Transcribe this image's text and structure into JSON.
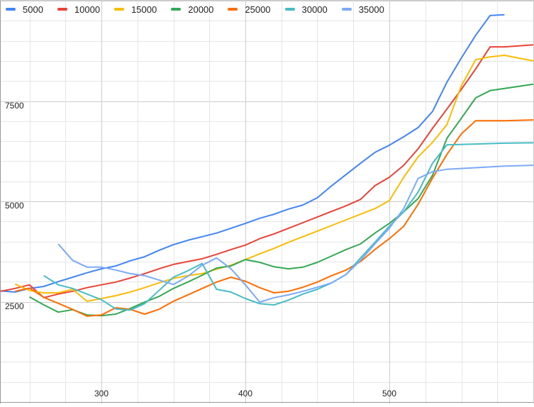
{
  "chart_data": {
    "type": "line",
    "title": "",
    "xlabel": "",
    "ylabel": "",
    "xlim": [
      230,
      600
    ],
    "ylim": [
      0,
      10000
    ],
    "grid": true,
    "legend_position": "top-left",
    "x_ticks": [
      300,
      400,
      500
    ],
    "y_ticks": [
      2500,
      5000,
      7500
    ],
    "x": [
      230,
      240,
      250,
      260,
      270,
      280,
      290,
      300,
      310,
      320,
      330,
      340,
      350,
      360,
      370,
      380,
      390,
      400,
      410,
      420,
      430,
      440,
      450,
      460,
      470,
      480,
      490,
      500,
      510,
      520,
      530,
      540,
      550,
      560,
      570,
      580,
      590,
      600
    ],
    "series": [
      {
        "name": "5000",
        "color": "#4285F4",
        "points": [
          [
            230,
            2770
          ],
          [
            240,
            2740
          ],
          [
            250,
            2830
          ],
          [
            260,
            2880
          ],
          [
            270,
            3000
          ],
          [
            280,
            3110
          ],
          [
            290,
            3220
          ],
          [
            300,
            3320
          ],
          [
            310,
            3390
          ],
          [
            320,
            3520
          ],
          [
            330,
            3620
          ],
          [
            340,
            3780
          ],
          [
            350,
            3920
          ],
          [
            360,
            4030
          ],
          [
            370,
            4120
          ],
          [
            380,
            4210
          ],
          [
            390,
            4330
          ],
          [
            400,
            4450
          ],
          [
            410,
            4580
          ],
          [
            420,
            4680
          ],
          [
            430,
            4810
          ],
          [
            440,
            4910
          ],
          [
            450,
            5090
          ],
          [
            460,
            5390
          ],
          [
            470,
            5670
          ],
          [
            480,
            5950
          ],
          [
            490,
            6220
          ],
          [
            500,
            6400
          ],
          [
            510,
            6610
          ],
          [
            520,
            6840
          ],
          [
            530,
            7240
          ],
          [
            540,
            7970
          ],
          [
            550,
            8570
          ],
          [
            560,
            9140
          ],
          [
            570,
            9630
          ],
          [
            580,
            9650
          ]
        ]
      },
      {
        "name": "10000",
        "color": "#EA4335",
        "points": [
          [
            230,
            2760
          ],
          [
            240,
            2830
          ],
          [
            250,
            2920
          ],
          [
            260,
            2600
          ],
          [
            270,
            2690
          ],
          [
            280,
            2760
          ],
          [
            290,
            2850
          ],
          [
            300,
            2920
          ],
          [
            310,
            2990
          ],
          [
            320,
            3090
          ],
          [
            330,
            3200
          ],
          [
            340,
            3320
          ],
          [
            350,
            3430
          ],
          [
            360,
            3500
          ],
          [
            370,
            3570
          ],
          [
            380,
            3680
          ],
          [
            390,
            3800
          ],
          [
            400,
            3910
          ],
          [
            410,
            4070
          ],
          [
            420,
            4190
          ],
          [
            430,
            4330
          ],
          [
            440,
            4470
          ],
          [
            450,
            4610
          ],
          [
            460,
            4750
          ],
          [
            470,
            4890
          ],
          [
            480,
            5050
          ],
          [
            490,
            5390
          ],
          [
            500,
            5600
          ],
          [
            510,
            5900
          ],
          [
            520,
            6310
          ],
          [
            530,
            6820
          ],
          [
            540,
            7300
          ],
          [
            550,
            7790
          ],
          [
            560,
            8300
          ],
          [
            570,
            8850
          ],
          [
            580,
            8850
          ],
          [
            600,
            8900
          ]
        ]
      },
      {
        "name": "15000",
        "color": "#FBBC04",
        "points": [
          [
            240,
            2940
          ],
          [
            250,
            2780
          ],
          [
            260,
            2720
          ],
          [
            270,
            2720
          ],
          [
            280,
            2810
          ],
          [
            290,
            2510
          ],
          [
            300,
            2580
          ],
          [
            310,
            2650
          ],
          [
            320,
            2740
          ],
          [
            330,
            2850
          ],
          [
            340,
            2970
          ],
          [
            350,
            3080
          ],
          [
            360,
            3150
          ],
          [
            370,
            3200
          ],
          [
            380,
            3310
          ],
          [
            390,
            3410
          ],
          [
            400,
            3550
          ],
          [
            410,
            3690
          ],
          [
            420,
            3830
          ],
          [
            430,
            3980
          ],
          [
            440,
            4120
          ],
          [
            450,
            4260
          ],
          [
            460,
            4400
          ],
          [
            470,
            4540
          ],
          [
            480,
            4680
          ],
          [
            490,
            4820
          ],
          [
            500,
            5020
          ],
          [
            510,
            5600
          ],
          [
            520,
            6110
          ],
          [
            530,
            6470
          ],
          [
            540,
            6910
          ],
          [
            550,
            7880
          ],
          [
            560,
            8530
          ],
          [
            570,
            8600
          ],
          [
            580,
            8640
          ],
          [
            600,
            8500
          ]
        ]
      },
      {
        "name": "20000",
        "color": "#34A853",
        "points": [
          [
            250,
            2620
          ],
          [
            260,
            2420
          ],
          [
            270,
            2240
          ],
          [
            280,
            2300
          ],
          [
            290,
            2170
          ],
          [
            300,
            2150
          ],
          [
            310,
            2190
          ],
          [
            320,
            2330
          ],
          [
            330,
            2490
          ],
          [
            340,
            2630
          ],
          [
            350,
            2830
          ],
          [
            360,
            2990
          ],
          [
            370,
            3160
          ],
          [
            380,
            3340
          ],
          [
            390,
            3390
          ],
          [
            400,
            3550
          ],
          [
            410,
            3480
          ],
          [
            420,
            3370
          ],
          [
            430,
            3320
          ],
          [
            440,
            3360
          ],
          [
            450,
            3480
          ],
          [
            460,
            3640
          ],
          [
            470,
            3800
          ],
          [
            480,
            3940
          ],
          [
            490,
            4210
          ],
          [
            500,
            4450
          ],
          [
            510,
            4740
          ],
          [
            520,
            5070
          ],
          [
            530,
            5650
          ],
          [
            540,
            6570
          ],
          [
            550,
            7070
          ],
          [
            560,
            7580
          ],
          [
            570,
            7760
          ],
          [
            600,
            7920
          ]
        ]
      },
      {
        "name": "25000",
        "color": "#FF6D01",
        "points": [
          [
            240,
            2760
          ],
          [
            250,
            2840
          ],
          [
            260,
            2610
          ],
          [
            270,
            2460
          ],
          [
            280,
            2310
          ],
          [
            290,
            2140
          ],
          [
            300,
            2170
          ],
          [
            310,
            2350
          ],
          [
            320,
            2310
          ],
          [
            330,
            2190
          ],
          [
            340,
            2310
          ],
          [
            350,
            2510
          ],
          [
            360,
            2670
          ],
          [
            370,
            2830
          ],
          [
            380,
            2990
          ],
          [
            390,
            3110
          ],
          [
            400,
            3010
          ],
          [
            410,
            2850
          ],
          [
            420,
            2720
          ],
          [
            430,
            2760
          ],
          [
            440,
            2860
          ],
          [
            450,
            2990
          ],
          [
            460,
            3150
          ],
          [
            470,
            3290
          ],
          [
            480,
            3500
          ],
          [
            490,
            3800
          ],
          [
            500,
            4070
          ],
          [
            510,
            4380
          ],
          [
            520,
            4930
          ],
          [
            530,
            5580
          ],
          [
            540,
            6170
          ],
          [
            550,
            6680
          ],
          [
            560,
            7010
          ],
          [
            570,
            7010
          ],
          [
            580,
            7010
          ],
          [
            600,
            7030
          ]
        ]
      },
      {
        "name": "30000",
        "color": "#46BDC6",
        "points": [
          [
            260,
            3150
          ],
          [
            270,
            2920
          ],
          [
            280,
            2830
          ],
          [
            290,
            2690
          ],
          [
            300,
            2550
          ],
          [
            310,
            2320
          ],
          [
            320,
            2290
          ],
          [
            330,
            2450
          ],
          [
            340,
            2780
          ],
          [
            350,
            3110
          ],
          [
            360,
            3270
          ],
          [
            370,
            3450
          ],
          [
            380,
            2810
          ],
          [
            390,
            2740
          ],
          [
            400,
            2580
          ],
          [
            410,
            2450
          ],
          [
            420,
            2420
          ],
          [
            430,
            2540
          ],
          [
            440,
            2690
          ],
          [
            450,
            2810
          ],
          [
            460,
            2970
          ],
          [
            470,
            3180
          ],
          [
            480,
            3590
          ],
          [
            490,
            3980
          ],
          [
            500,
            4380
          ],
          [
            510,
            4740
          ],
          [
            520,
            5230
          ],
          [
            530,
            5950
          ],
          [
            540,
            6410
          ],
          [
            560,
            6430
          ],
          [
            580,
            6450
          ],
          [
            600,
            6460
          ]
        ]
      },
      {
        "name": "35000",
        "color": "#7BAAF7",
        "points": [
          [
            270,
            3940
          ],
          [
            280,
            3530
          ],
          [
            290,
            3360
          ],
          [
            300,
            3360
          ],
          [
            310,
            3290
          ],
          [
            320,
            3200
          ],
          [
            330,
            3150
          ],
          [
            340,
            3040
          ],
          [
            350,
            2930
          ],
          [
            360,
            3130
          ],
          [
            370,
            3410
          ],
          [
            380,
            3590
          ],
          [
            390,
            3320
          ],
          [
            400,
            2920
          ],
          [
            410,
            2490
          ],
          [
            420,
            2600
          ],
          [
            430,
            2670
          ],
          [
            440,
            2760
          ],
          [
            450,
            2860
          ],
          [
            460,
            2970
          ],
          [
            470,
            3180
          ],
          [
            480,
            3530
          ],
          [
            490,
            3940
          ],
          [
            500,
            4330
          ],
          [
            510,
            4820
          ],
          [
            520,
            5570
          ],
          [
            530,
            5740
          ],
          [
            540,
            5800
          ],
          [
            560,
            5840
          ],
          [
            580,
            5880
          ],
          [
            600,
            5900
          ]
        ]
      }
    ]
  },
  "legend": {
    "items": [
      {
        "label": "5000",
        "color": "#4285F4"
      },
      {
        "label": "10000",
        "color": "#EA4335"
      },
      {
        "label": "15000",
        "color": "#FBBC04"
      },
      {
        "label": "20000",
        "color": "#34A853"
      },
      {
        "label": "25000",
        "color": "#FF6D01"
      },
      {
        "label": "30000",
        "color": "#46BDC6"
      },
      {
        "label": "35000",
        "color": "#7BAAF7"
      }
    ]
  },
  "axes": {
    "y_labels": [
      "7500",
      "5000",
      "2500"
    ],
    "x_labels": [
      "300",
      "400",
      "500"
    ]
  }
}
